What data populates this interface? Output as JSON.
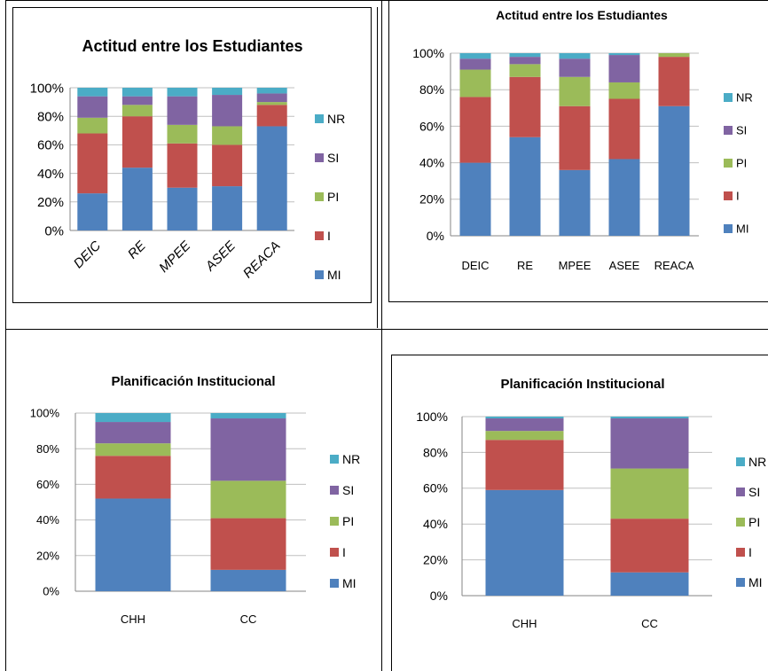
{
  "chart_data": [
    {
      "type": "bar",
      "stacked": true,
      "title": "Actitud entre los Estudiantes",
      "categories": [
        "DEIC",
        "RE",
        "MPEE",
        "ASEE",
        "REACA"
      ],
      "series": [
        {
          "name": "MI",
          "values": [
            26,
            44,
            30,
            31,
            73
          ]
        },
        {
          "name": "I",
          "values": [
            42,
            36,
            31,
            29,
            15
          ]
        },
        {
          "name": "PI",
          "values": [
            11,
            8,
            13,
            13,
            2
          ]
        },
        {
          "name": "SI",
          "values": [
            15,
            6,
            20,
            22,
            6
          ]
        },
        {
          "name": "NR",
          "values": [
            6,
            6,
            6,
            5,
            4
          ]
        }
      ],
      "ylim": [
        0,
        100
      ],
      "yticks": [
        "0%",
        "20%",
        "40%",
        "60%",
        "80%",
        "100%"
      ],
      "xlabels_rotated": true,
      "grid": true,
      "legend": "right"
    },
    {
      "type": "bar",
      "stacked": true,
      "title": "Actitud entre los Estudiantes",
      "categories": [
        "DEIC",
        "RE",
        "MPEE",
        "ASEE",
        "REACA"
      ],
      "series": [
        {
          "name": "MI",
          "values": [
            40,
            54,
            36,
            42,
            71
          ]
        },
        {
          "name": "I",
          "values": [
            36,
            33,
            35,
            33,
            27
          ]
        },
        {
          "name": "PI",
          "values": [
            15,
            7,
            16,
            9,
            2
          ]
        },
        {
          "name": "SI",
          "values": [
            6,
            4,
            10,
            15,
            0
          ]
        },
        {
          "name": "NR",
          "values": [
            3,
            2,
            3,
            1,
            0
          ]
        }
      ],
      "ylim": [
        0,
        100
      ],
      "yticks": [
        "0%",
        "20%",
        "40%",
        "60%",
        "80%",
        "100%"
      ],
      "xlabels_rotated": false,
      "grid": true,
      "legend": "right"
    },
    {
      "type": "bar",
      "stacked": true,
      "title": "Planificación Institucional",
      "categories": [
        "CHH",
        "CC"
      ],
      "series": [
        {
          "name": "MI",
          "values": [
            52,
            12
          ]
        },
        {
          "name": "I",
          "values": [
            24,
            29
          ]
        },
        {
          "name": "PI",
          "values": [
            7,
            21
          ]
        },
        {
          "name": "SI",
          "values": [
            12,
            35
          ]
        },
        {
          "name": "NR",
          "values": [
            5,
            3
          ]
        }
      ],
      "ylim": [
        0,
        100
      ],
      "yticks": [
        "0%",
        "20%",
        "40%",
        "60%",
        "80%",
        "100%"
      ],
      "xlabels_rotated": false,
      "grid": true,
      "legend": "right"
    },
    {
      "type": "bar",
      "stacked": true,
      "title": "Planificación Institucional",
      "categories": [
        "CHH",
        "CC"
      ],
      "series": [
        {
          "name": "MI",
          "values": [
            59,
            13
          ]
        },
        {
          "name": "I",
          "values": [
            28,
            30
          ]
        },
        {
          "name": "PI",
          "values": [
            5,
            28
          ]
        },
        {
          "name": "SI",
          "values": [
            7,
            28
          ]
        },
        {
          "name": "NR",
          "values": [
            1,
            1
          ]
        }
      ],
      "ylim": [
        0,
        100
      ],
      "yticks": [
        "0%",
        "20%",
        "40%",
        "60%",
        "80%",
        "100%"
      ],
      "xlabels_rotated": false,
      "grid": true,
      "legend": "right"
    }
  ],
  "colors": {
    "MI": "#4f81bd",
    "I": "#c0504d",
    "PI": "#9bbb59",
    "SI": "#8064a2",
    "NR": "#4bacc6"
  }
}
